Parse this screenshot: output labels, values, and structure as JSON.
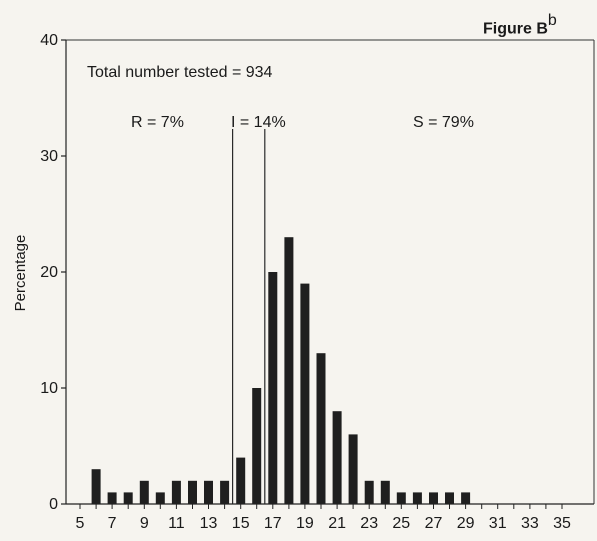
{
  "figure": {
    "title": "Figure B",
    "title_sup": "b"
  },
  "chart_data": {
    "type": "bar",
    "ylabel": "Percentage",
    "xlabel": "",
    "ylim": [
      0,
      40
    ],
    "xlim": [
      5,
      35
    ],
    "yticks": [
      0,
      10,
      20,
      30,
      40
    ],
    "xticks": [
      5,
      7,
      9,
      11,
      13,
      15,
      17,
      19,
      21,
      23,
      25,
      27,
      29,
      31,
      33,
      35
    ],
    "grid": false,
    "x": [
      6,
      7,
      8,
      9,
      10,
      11,
      12,
      13,
      14,
      15,
      16,
      17,
      18,
      19,
      20,
      21,
      22,
      23,
      24,
      25,
      26,
      27,
      28,
      29
    ],
    "values": [
      3,
      1,
      1,
      2,
      1,
      2,
      2,
      2,
      2,
      4,
      10,
      20,
      23,
      19,
      13,
      8,
      6,
      2,
      2,
      1,
      1,
      1,
      1,
      1
    ],
    "bar_color": "#1f1f1f",
    "breakpoints": [
      14.5,
      16.5
    ],
    "annotations": {
      "total": "Total number tested = 934",
      "resistant": "R = 7%",
      "intermediate": "I = 14%",
      "susceptible": "S = 79%"
    }
  }
}
